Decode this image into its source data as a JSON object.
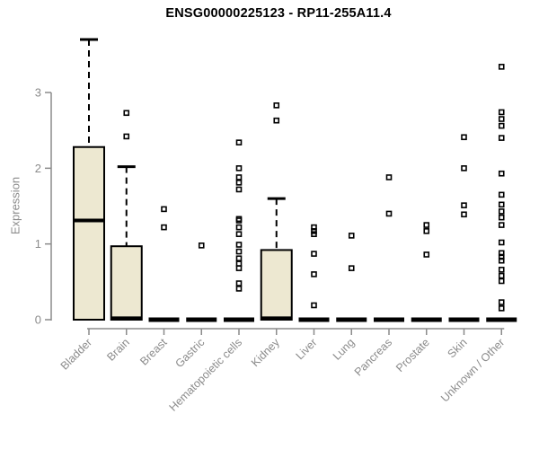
{
  "chart_data": {
    "type": "boxplot",
    "title": "ENSG00000225123 - RP11-255A11.4",
    "ylabel": "Expression",
    "xlabel": "",
    "yticks": [
      0,
      1,
      2,
      3
    ],
    "ylim": [
      0,
      3.8
    ],
    "grid": false,
    "legend": "none",
    "categories": [
      "Bladder",
      "Brain",
      "Breast",
      "Gastric",
      "Hematopoietic cells",
      "Kidney",
      "Liver",
      "Lung",
      "Pancreas",
      "Prostate",
      "Skin",
      "Unknown / Other"
    ],
    "series": [
      {
        "category": "Bladder",
        "q1": 0,
        "median": 1.31,
        "q3": 2.28,
        "whisker_low": 0,
        "whisker_high": 3.7,
        "outliers": []
      },
      {
        "category": "Brain",
        "q1": 0,
        "median": 0.02,
        "q3": 0.97,
        "whisker_low": 0,
        "whisker_high": 2.02,
        "outliers": [
          2.73,
          2.42
        ]
      },
      {
        "category": "Breast",
        "q1": 0,
        "median": 0,
        "q3": 0,
        "whisker_low": 0,
        "whisker_high": 0,
        "outliers": [
          1.46,
          1.22
        ]
      },
      {
        "category": "Gastric",
        "q1": 0,
        "median": 0,
        "q3": 0,
        "whisker_low": 0,
        "whisker_high": 0,
        "outliers": [
          0.98
        ]
      },
      {
        "category": "Hematopoietic cells",
        "q1": 0,
        "median": 0,
        "q3": 0,
        "whisker_low": 0,
        "whisker_high": 0,
        "outliers": [
          2.34,
          2.0,
          1.88,
          1.81,
          1.72,
          1.33,
          1.31,
          1.22,
          1.13,
          0.99,
          0.9,
          0.81,
          0.74,
          0.68,
          0.48,
          0.41
        ]
      },
      {
        "category": "Kidney",
        "q1": 0,
        "median": 0.02,
        "q3": 0.92,
        "whisker_low": 0,
        "whisker_high": 1.6,
        "outliers": [
          2.83,
          2.63
        ]
      },
      {
        "category": "Liver",
        "q1": 0,
        "median": 0,
        "q3": 0,
        "whisker_low": 0,
        "whisker_high": 0,
        "outliers": [
          1.22,
          1.17,
          1.13,
          0.87,
          0.6,
          0.19
        ]
      },
      {
        "category": "Lung",
        "q1": 0,
        "median": 0,
        "q3": 0,
        "whisker_low": 0,
        "whisker_high": 0,
        "outliers": [
          1.11,
          0.68
        ]
      },
      {
        "category": "Pancreas",
        "q1": 0,
        "median": 0,
        "q3": 0,
        "whisker_low": 0,
        "whisker_high": 0,
        "outliers": [
          1.88,
          1.4
        ]
      },
      {
        "category": "Prostate",
        "q1": 0,
        "median": 0,
        "q3": 0,
        "whisker_low": 0,
        "whisker_high": 0,
        "outliers": [
          1.25,
          1.17,
          0.86
        ]
      },
      {
        "category": "Skin",
        "q1": 0,
        "median": 0,
        "q3": 0,
        "whisker_low": 0,
        "whisker_high": 0,
        "outliers": [
          2.41,
          2.0,
          1.51,
          1.39
        ]
      },
      {
        "category": "Unknown / Other",
        "q1": 0,
        "median": 0,
        "q3": 0,
        "whisker_low": 0,
        "whisker_high": 0,
        "outliers": [
          3.34,
          2.74,
          2.65,
          2.56,
          2.4,
          1.93,
          1.65,
          1.52,
          1.43,
          1.35,
          1.25,
          1.02,
          0.88,
          0.83,
          0.78,
          0.66,
          0.58,
          0.51,
          0.23,
          0.15
        ]
      }
    ],
    "colors": {
      "box_fill": "#ede8d1",
      "box_stroke": "#000000",
      "axis": "#8b8b8b",
      "title": "#000000"
    }
  }
}
